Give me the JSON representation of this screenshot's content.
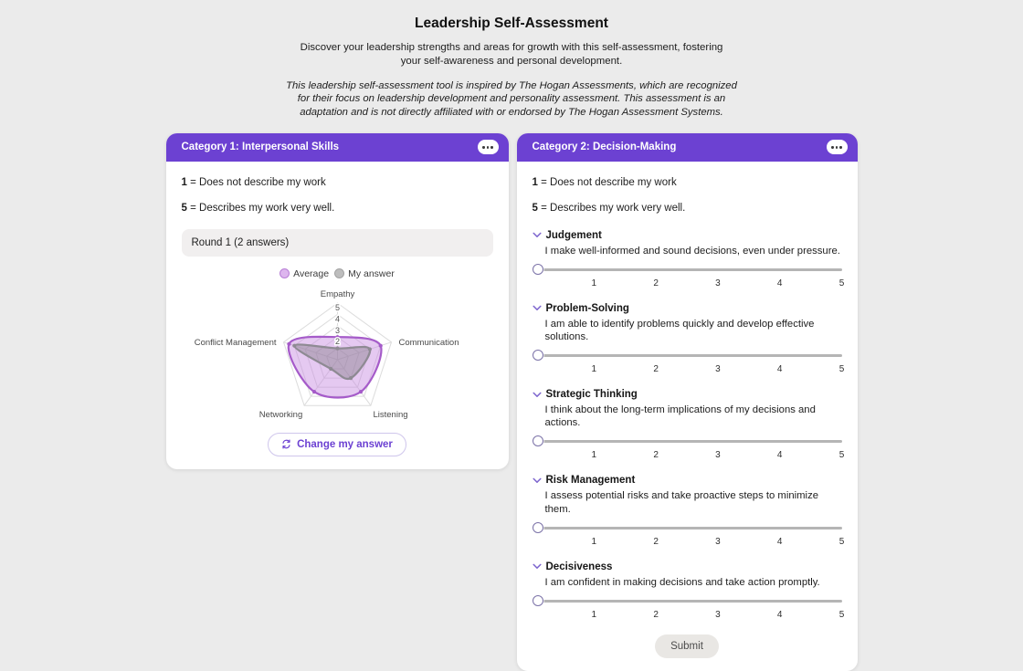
{
  "header": {
    "title": "Leadership Self-Assessment",
    "subtitle": "Discover your leadership strengths and areas for growth with this self-assessment, fostering your self-awareness and personal development.",
    "disclaimer": "This leadership self-assessment tool is inspired by The Hogan Assessments, which are recognized for their focus on leadership development and personality assessment. This assessment is an adaptation and is not directly affiliated with or endorsed by The Hogan Assessment Systems."
  },
  "scale": {
    "low_value": "1",
    "low_text": "= Does not describe my work",
    "high_value": "5",
    "high_text": "= Describes my work very well."
  },
  "colors": {
    "accent_purple": "#6c41d2",
    "average_fill": "#ddb6ee",
    "average_stroke": "#a55bc9",
    "my_answer_fill": "#bdbdbd",
    "my_answer_stroke": "#9a969f",
    "slider_track": "#b5b5b5"
  },
  "card1": {
    "title": "Category 1: Interpersonal Skills",
    "menu_icon": "ellipsis",
    "round_label": "Round 1 (2 answers)",
    "legend": [
      {
        "label": "Average",
        "fill": "#ddb6ee",
        "stroke": "#b87fd6"
      },
      {
        "label": "My answer",
        "fill": "#bdbdbd",
        "stroke": "#a3a3a3"
      }
    ],
    "change_button": "Change my answer"
  },
  "chart_data": {
    "type": "radar",
    "title": "",
    "categories": [
      "Empathy",
      "Communication",
      "Listening",
      "Networking",
      "Conflict Management"
    ],
    "series": [
      {
        "name": "Average",
        "values": [
          2,
          4,
          3.5,
          3.5,
          4.5
        ],
        "fill": "rgba(198,136,224,0.45)",
        "stroke": "#a55bc9"
      },
      {
        "name": "My answer",
        "values": [
          1,
          3,
          2,
          1,
          4
        ],
        "fill": "rgba(128,124,132,0.42)",
        "stroke": "#8e8a93"
      }
    ],
    "axis": {
      "min": 0,
      "max": 5,
      "visible_ticks": [
        2,
        3,
        4,
        5
      ]
    },
    "grid": true,
    "legend_position": "top"
  },
  "card2": {
    "title": "Category 2: Decision-Making",
    "menu_icon": "ellipsis",
    "slider_ticks": [
      "1",
      "2",
      "3",
      "4",
      "5"
    ],
    "items": [
      {
        "title": "Judgement",
        "description": "I make well-informed and sound decisions, even under pressure."
      },
      {
        "title": "Problem-Solving",
        "description": "I am able to identify problems quickly and develop effective solutions."
      },
      {
        "title": "Strategic Thinking",
        "description": "I think about the long-term implications of my decisions and actions."
      },
      {
        "title": "Risk Management",
        "description": "I assess potential risks and take proactive steps to minimize them."
      },
      {
        "title": "Decisiveness",
        "description": "I am confident in making decisions and take action promptly."
      }
    ],
    "submit_button": "Submit"
  }
}
